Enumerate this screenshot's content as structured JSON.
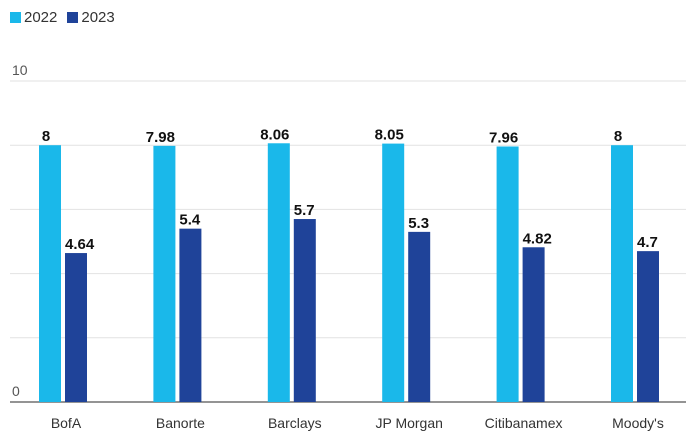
{
  "chart_data": {
    "type": "bar",
    "categories": [
      "BofA",
      "Banorte",
      "Barclays",
      "JP Morgan",
      "Citibanamex",
      "Moody's"
    ],
    "series": [
      {
        "name": "2022",
        "values": [
          8,
          7.98,
          8.06,
          8.05,
          7.96,
          8
        ],
        "labels": [
          "8",
          "7.98",
          "8.06",
          "8.05",
          "7.96",
          "8"
        ],
        "color": "#1ab8ea"
      },
      {
        "name": "2023",
        "values": [
          4.64,
          5.4,
          5.7,
          5.3,
          4.82,
          4.7
        ],
        "labels": [
          "4.64",
          "5.4",
          "5.7",
          "5.3",
          "4.82",
          "4.7"
        ],
        "color": "#1f4399"
      }
    ],
    "ylim": [
      0,
      10
    ],
    "y_tick_labels": [
      {
        "value": 0,
        "label": "0"
      },
      {
        "value": 10,
        "label": "10"
      }
    ],
    "gridlines_at": [
      2,
      4,
      6,
      8,
      10
    ],
    "grid": true,
    "legend": "top-left",
    "title": "",
    "xlabel": "",
    "ylabel": ""
  }
}
